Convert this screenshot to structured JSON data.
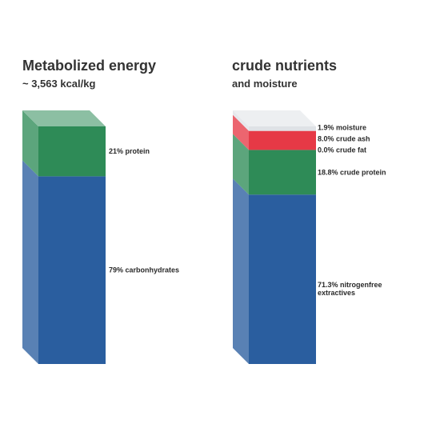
{
  "chart_data": [
    {
      "type": "stacked-bar",
      "title": "Metabolized energy",
      "subtitle": "~ 3,563 kcal/kg",
      "unit": "%",
      "segments": [
        {
          "name": "carbonhydrates",
          "label": "79% carbonhydrates",
          "value": 79,
          "color": "#2a5e9f"
        },
        {
          "name": "protein",
          "label": "21% protein",
          "value": 21,
          "color": "#2e8b57"
        }
      ]
    },
    {
      "type": "stacked-bar",
      "title": "crude nutrients",
      "subtitle": "and moisture",
      "unit": "%",
      "segments": [
        {
          "name": "nitrogenfree-extractives",
          "label": [
            "71.3% nitrogenfree",
            "extractives"
          ],
          "value": 71.3,
          "color": "#2a5e9f"
        },
        {
          "name": "crude-protein",
          "label": [
            "18.8% crude protein"
          ],
          "value": 18.8,
          "color": "#2e8b57"
        },
        {
          "name": "crude-fat",
          "label": [
            "0.0% crude fat"
          ],
          "value": 0.0,
          "color": "#d9373f"
        },
        {
          "name": "crude-ash",
          "label": [
            "8.0% crude ash"
          ],
          "value": 8.0,
          "color": "#e63946"
        },
        {
          "name": "moisture",
          "label": [
            "1.9% moisture"
          ],
          "value": 1.9,
          "color": "#dfe2e6"
        }
      ]
    }
  ]
}
